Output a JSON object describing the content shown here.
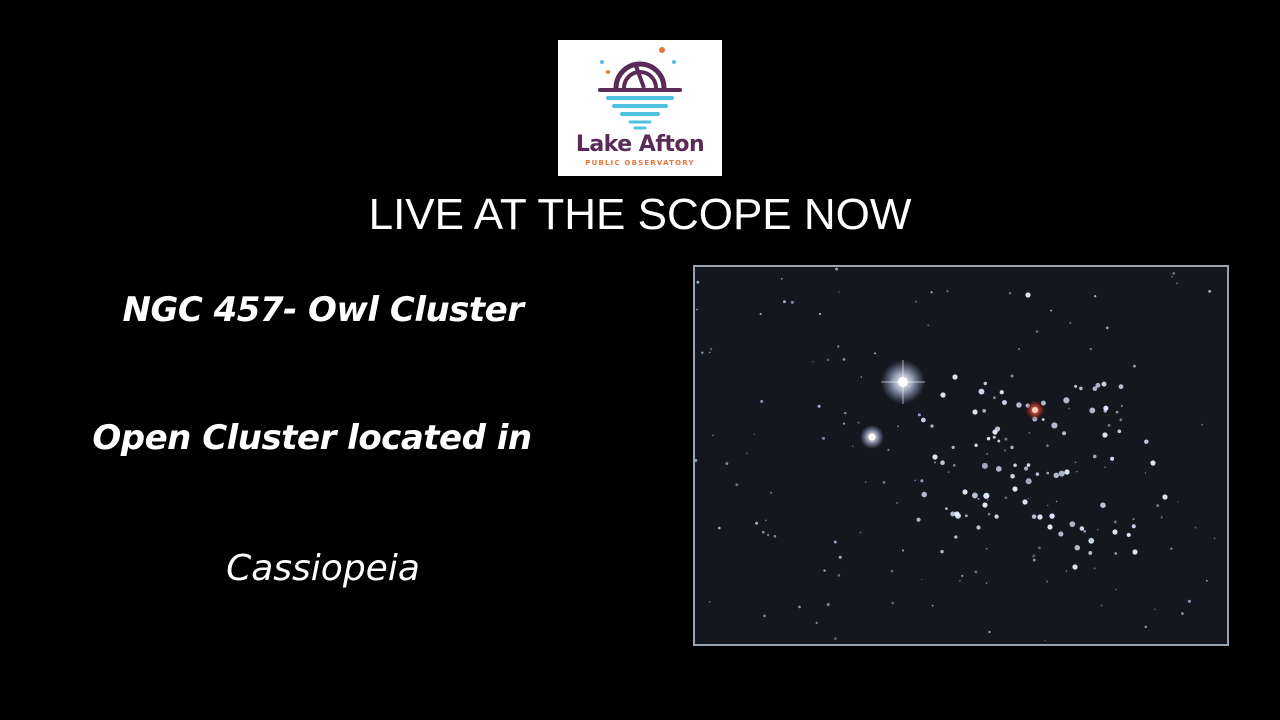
{
  "logo": {
    "name": "Lake Afton",
    "subtitle": "PUBLIC OBSERVATORY",
    "colors": {
      "dome": "#5a2a58",
      "water": "#4ec3e0",
      "accent": "#e8753a",
      "text": "#5a2a58"
    }
  },
  "headline": "LIVE AT THE SCOPE NOW",
  "object": {
    "name": "NGC 457- Owl Cluster",
    "description": "Open Cluster located in",
    "constellation": "Cassiopeia"
  },
  "photo": {
    "subject": "star-field-photo"
  }
}
